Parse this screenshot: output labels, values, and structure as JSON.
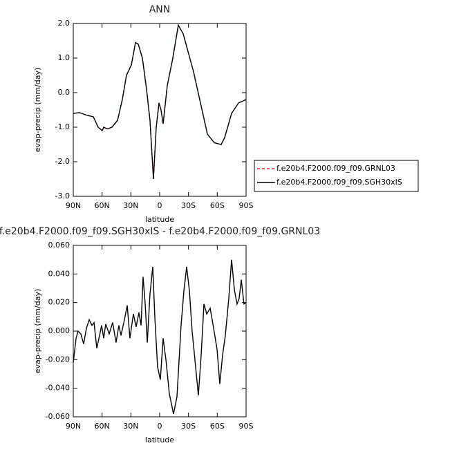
{
  "chart_data": [
    {
      "type": "line",
      "title": "ANN",
      "xlabel": "latitude",
      "ylabel": "evap-precip (mm/day)",
      "x": [
        90,
        83.5,
        76.3,
        69.1,
        64.1,
        59.8,
        58.3,
        54.7,
        49.7,
        43.9,
        38.9,
        34.6,
        29.5,
        25.2,
        22.3,
        18,
        13.7,
        10.1,
        6.5,
        3.6,
        0.7,
        -1.4,
        -3.6,
        -7.9,
        -13.7,
        -19.4,
        -24.5,
        -35.3,
        -42.5,
        -49.7,
        -56.9,
        -64.1,
        -67.7,
        -74.9,
        -82.1,
        -90
      ],
      "series": [
        {
          "name": "f.e20b4.F2000.f09_f09.GRNL03",
          "color": "#e8231e",
          "dash": true,
          "values": [
            -0.6,
            -0.58,
            -0.65,
            -0.7,
            -1.0,
            -1.1,
            -1.0,
            -1.05,
            -1.0,
            -0.8,
            -0.2,
            0.5,
            0.8,
            1.45,
            1.4,
            1.0,
            0.1,
            -0.8,
            -2.5,
            -1.0,
            -0.3,
            -0.5,
            -0.9,
            0.2,
            1.0,
            1.95,
            1.7,
            0.6,
            -0.3,
            -1.2,
            -1.45,
            -1.5,
            -1.3,
            -0.6,
            -0.3,
            -0.2
          ]
        },
        {
          "name": "f.e20b4.F2000.f09_f09.SGH30xIS",
          "color": "#000000",
          "dash": false,
          "values": [
            -0.6,
            -0.58,
            -0.65,
            -0.7,
            -1.0,
            -1.1,
            -1.0,
            -1.05,
            -1.0,
            -0.8,
            -0.2,
            0.5,
            0.8,
            1.45,
            1.4,
            1.0,
            0.1,
            -0.8,
            -2.5,
            -1.0,
            -0.3,
            -0.5,
            -0.9,
            0.2,
            1.0,
            1.95,
            1.7,
            0.6,
            -0.3,
            -1.2,
            -1.45,
            -1.5,
            -1.3,
            -0.6,
            -0.3,
            -0.2
          ]
        }
      ],
      "xlim": [
        90,
        -90
      ],
      "xticks": [
        {
          "value": 90,
          "label": "90N"
        },
        {
          "value": 60,
          "label": "60N"
        },
        {
          "value": 30,
          "label": "30N"
        },
        0,
        {
          "value": -30,
          "label": "30S"
        },
        {
          "value": -60,
          "label": "60S"
        },
        {
          "value": -90,
          "label": "90S"
        }
      ],
      "ylim": [
        -3,
        2
      ],
      "yticks": [
        {
          "value": -3,
          "label": "-3.0"
        },
        {
          "value": -2,
          "label": "-2.0"
        },
        {
          "value": -1,
          "label": "-1.0"
        },
        {
          "value": 0,
          "label": "0.0"
        },
        {
          "value": 1,
          "label": "1.0"
        },
        {
          "value": 2,
          "label": "2.0"
        }
      ],
      "legend": "right"
    },
    {
      "type": "line",
      "title": "f.e20b4.F2000.f09_f09.SGH30xIS - f.e20b4.F2000.f09_f09.GRNL03",
      "xlabel": "latitude",
      "ylabel": "evap-precip (mm/day)",
      "x": [
        90,
        87.1,
        85,
        82.1,
        79.2,
        76.3,
        73.4,
        70.6,
        68.4,
        65.5,
        62.6,
        60.5,
        58.3,
        56.2,
        52.6,
        49,
        45.4,
        42.5,
        40.3,
        36.7,
        33.8,
        31,
        27.4,
        24.5,
        21.6,
        19.4,
        17.3,
        15.1,
        12.9,
        10.1,
        7.2,
        5,
        2.2,
        -0.7,
        -3.6,
        -6.5,
        -10.1,
        -14.4,
        -18,
        -22.3,
        -25.2,
        -28.1,
        -31,
        -33.8,
        -36.7,
        -40.3,
        -43.2,
        -46.1,
        -49,
        -52.6,
        -56.2,
        -59.8,
        -62.6,
        -65.5,
        -68.4,
        -72,
        -74.9,
        -77.8,
        -80.6,
        -82.8,
        -85,
        -87.8,
        -90
      ],
      "values": [
        -0.022,
        -0.005,
        0,
        -0.002,
        -0.009,
        0.002,
        0.008,
        0.004,
        0.006,
        -0.012,
        -0.003,
        0.004,
        -0.005,
        0.005,
        -0.002,
        0.006,
        -0.008,
        0.004,
        -0.003,
        0.008,
        0.018,
        -0.005,
        0.012,
        0.003,
        0.013,
        0.004,
        0.038,
        0.019,
        -0.008,
        0.026,
        0.045,
        0.009,
        -0.025,
        -0.034,
        -0.005,
        -0.02,
        -0.044,
        -0.058,
        -0.046,
        0.004,
        0.028,
        0.045,
        0.028,
        0,
        -0.02,
        -0.045,
        -0.017,
        0.019,
        0.012,
        0.016,
        0.002,
        -0.013,
        -0.037,
        -0.017,
        -0.003,
        0.023,
        0.05,
        0.029,
        0.019,
        0.023,
        0.036,
        0.019,
        0.02
      ],
      "color": "#000000",
      "xlim": [
        90,
        -90
      ],
      "xticks": [
        {
          "value": 90,
          "label": "90N"
        },
        {
          "value": 60,
          "label": "60N"
        },
        {
          "value": 30,
          "label": "30N"
        },
        0,
        {
          "value": -30,
          "label": "30S"
        },
        {
          "value": -60,
          "label": "60S"
        },
        {
          "value": -90,
          "label": "90S"
        }
      ],
      "ylim": [
        -0.06,
        0.06
      ],
      "yticks": [
        {
          "value": -0.06,
          "label": "-0.060"
        },
        {
          "value": -0.04,
          "label": "-0.040"
        },
        {
          "value": -0.02,
          "label": "-0.020"
        },
        {
          "value": 0,
          "label": "0.000"
        },
        {
          "value": 0.02,
          "label": "0.020"
        },
        {
          "value": 0.04,
          "label": "0.040"
        },
        {
          "value": 0.06,
          "label": "0.060"
        }
      ]
    }
  ]
}
